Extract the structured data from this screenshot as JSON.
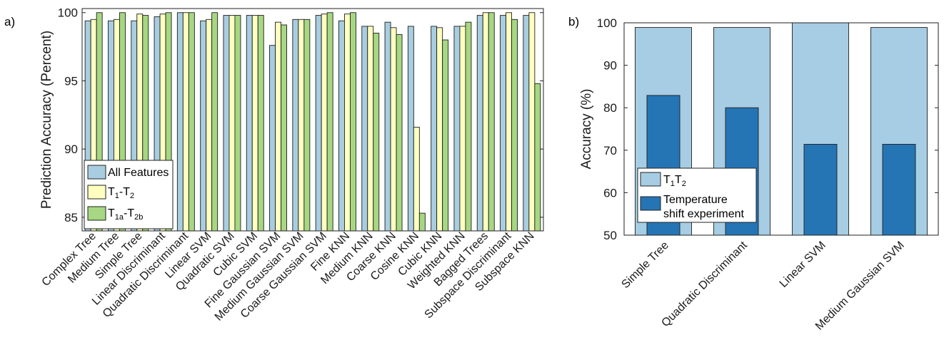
{
  "chart_data": [
    {
      "panel_label": "a)",
      "type": "bar",
      "ylabel": "Prediction Accuracy (Percent)",
      "xlabel": "",
      "ylim": [
        84,
        100.3
      ],
      "yticks": [
        85,
        90,
        95,
        100
      ],
      "grid": false,
      "legend_position": "bottom-left",
      "categories": [
        "Complex Tree",
        "Medium Tree",
        "Simple Tree",
        "Linear Discriminant",
        "Quadratic Discriminant",
        "Linear SVM",
        "Quadratic SVM",
        "Cubic SVM",
        "Fine Gaussian SVM",
        "Medium Gaussian SVM",
        "Coarse Gaussian SVM",
        "Fine KNN",
        "Medium KNN",
        "Coarse KNN",
        "Cosine KNN",
        "Cubic KNN",
        "Weighted KNN",
        "Bagged Trees",
        "Subspace Discriminant",
        "Subspace KNN"
      ],
      "series": [
        {
          "name": "All Features",
          "color": "#a8cde0",
          "values": [
            99.4,
            99.4,
            99.4,
            99.7,
            100.0,
            99.4,
            99.8,
            99.8,
            97.6,
            99.5,
            99.8,
            99.4,
            99.0,
            99.3,
            99.0,
            99.0,
            99.0,
            99.8,
            99.8,
            99.8
          ]
        },
        {
          "name": "T1-T2",
          "legend": {
            "main": "T",
            "sub1": "1",
            "mid": "-T",
            "sub2": "2"
          },
          "color": "#ffffc0",
          "values": [
            99.5,
            99.5,
            99.9,
            99.9,
            100.0,
            99.5,
            99.8,
            99.8,
            99.3,
            99.5,
            99.9,
            99.9,
            99.0,
            98.9,
            91.6,
            98.9,
            99.0,
            100.0,
            100.0,
            100.0
          ]
        },
        {
          "name": "T1a-T2b",
          "legend": {
            "main": "T",
            "sub1": "1a",
            "mid": "-T",
            "sub2": "2b"
          },
          "color": "#a6d782",
          "values": [
            100.0,
            100.0,
            99.8,
            100.0,
            100.0,
            100.0,
            99.8,
            99.8,
            99.1,
            99.5,
            100.0,
            100.0,
            98.5,
            98.4,
            85.3,
            98.0,
            99.3,
            100.0,
            99.5,
            94.8
          ]
        }
      ]
    },
    {
      "panel_label": "b)",
      "type": "bar",
      "ylabel": "Accuracy (%)",
      "xlabel": "",
      "ylim": [
        50,
        100
      ],
      "yticks": [
        50,
        60,
        70,
        80,
        90,
        100
      ],
      "grid": false,
      "legend_position": "bottom-left",
      "categories": [
        "Simple Tree",
        "Quadratic Discriminant",
        "Linear SVM",
        "Medium Gaussian SVM"
      ],
      "series": [
        {
          "name": "T1T2",
          "legend": {
            "main": "T",
            "sub1": "1",
            "mid": "T",
            "sub2": "2"
          },
          "color": "#a6cde3",
          "values": [
            98.9,
            98.9,
            100.0,
            98.9
          ]
        },
        {
          "name": "Temperature shift experiment",
          "legend_lines": [
            "Temperature",
            "shift experiment"
          ],
          "color": "#2575b5",
          "values": [
            82.9,
            80.0,
            71.4,
            71.4
          ]
        }
      ]
    }
  ]
}
